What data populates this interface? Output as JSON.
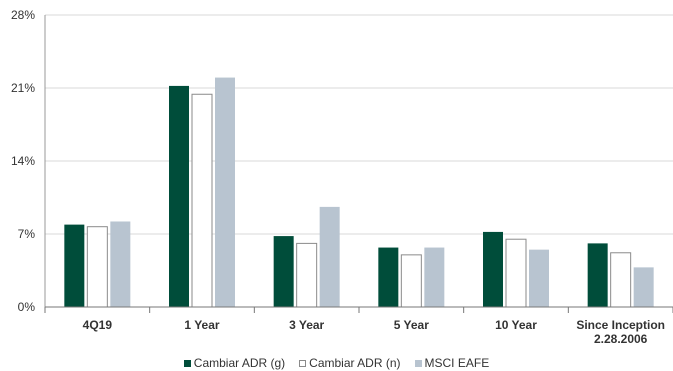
{
  "chart_data": {
    "type": "bar",
    "categories": [
      "4Q19",
      "1 Year",
      "3 Year",
      "5 Year",
      "10 Year",
      "Since Inception\n2.28.2006"
    ],
    "series": [
      {
        "name": "Cambiar ADR (g)",
        "values": [
          7.9,
          21.2,
          6.8,
          5.7,
          7.2,
          6.1
        ],
        "color": "#004d3a"
      },
      {
        "name": "Cambiar ADR (n)",
        "values": [
          7.7,
          20.4,
          6.1,
          5.0,
          6.5,
          5.2
        ],
        "color": "#ffffff"
      },
      {
        "name": "MSCI EAFE",
        "values": [
          8.2,
          22.0,
          9.6,
          5.7,
          5.5,
          3.8
        ],
        "color": "#b8c4d0"
      }
    ],
    "yticks": [
      "0%",
      "7%",
      "14%",
      "21%",
      "28%"
    ],
    "ylim": [
      0,
      28
    ],
    "grid": true,
    "legend_position": "bottom"
  }
}
